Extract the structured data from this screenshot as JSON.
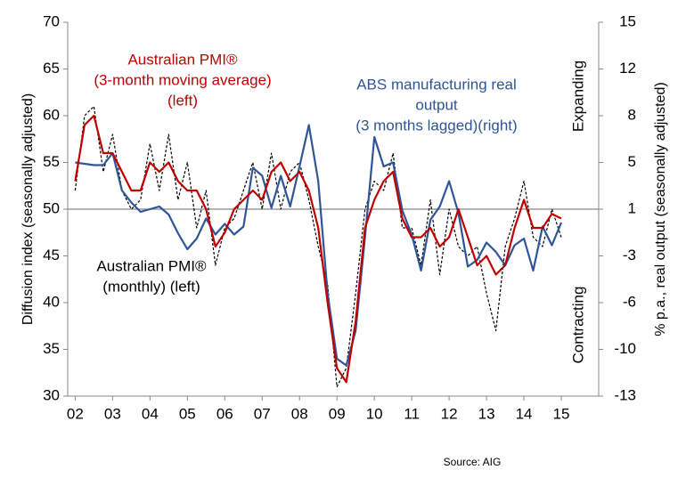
{
  "chart_data": {
    "type": "line",
    "axis_labels": {
      "y": "Diffusion index (seasonally adjusted)",
      "y2": "% p.a., real output (seasonally adjusted)"
    },
    "side_labels": {
      "top": "Expanding",
      "bottom": "Contracting"
    },
    "source": "Source: AIG",
    "xlim": [
      2001.8,
      2016
    ],
    "xticks": [
      {
        "value": 2002,
        "label": "02"
      },
      {
        "value": 2003,
        "label": "03"
      },
      {
        "value": 2004,
        "label": "04"
      },
      {
        "value": 2005,
        "label": "05"
      },
      {
        "value": 2006,
        "label": "06"
      },
      {
        "value": 2007,
        "label": "07"
      },
      {
        "value": 2008,
        "label": "08"
      },
      {
        "value": 2009,
        "label": "09"
      },
      {
        "value": 2010,
        "label": "10"
      },
      {
        "value": 2011,
        "label": "11"
      },
      {
        "value": 2012,
        "label": "12"
      },
      {
        "value": 2013,
        "label": "13"
      },
      {
        "value": 2014,
        "label": "14"
      },
      {
        "value": 2015,
        "label": "15"
      }
    ],
    "ylim": [
      30,
      70
    ],
    "yticks": [
      30,
      35,
      40,
      45,
      50,
      55,
      60,
      65,
      70
    ],
    "y2lim": [
      -13,
      15
    ],
    "y2ticks": [
      -13,
      {
        "value": -9.5,
        "label": "-10"
      },
      -6,
      {
        "value": -2.5,
        "label": "-3"
      },
      1,
      {
        "value": 4.5,
        "label": "5"
      },
      8,
      {
        "value": 11.5,
        "label": "12"
      },
      15
    ],
    "hline": 50,
    "x": [
      2002,
      2002.25,
      2002.5,
      2002.75,
      2003,
      2003.25,
      2003.5,
      2003.75,
      2004,
      2004.25,
      2004.5,
      2004.75,
      2005,
      2005.25,
      2005.5,
      2005.75,
      2006,
      2006.25,
      2006.5,
      2006.75,
      2007,
      2007.25,
      2007.5,
      2007.75,
      2008,
      2008.25,
      2008.5,
      2008.75,
      2009,
      2009.25,
      2009.5,
      2009.75,
      2010,
      2010.25,
      2010.5,
      2010.75,
      2011,
      2011.25,
      2011.5,
      2011.75,
      2012,
      2012.25,
      2012.5,
      2012.75,
      2013,
      2013.25,
      2013.5,
      2013.75,
      2014,
      2014.25,
      2014.5,
      2014.75,
      2015
    ],
    "series": [
      {
        "label": [
          "Australian PMI®",
          "(monthly) (left)"
        ],
        "color": "#000000",
        "dashed": true,
        "values": [
          52,
          60,
          61,
          54,
          58,
          52,
          50,
          51,
          57,
          52,
          58,
          51,
          55,
          48,
          52,
          44,
          48,
          49,
          52,
          55,
          50,
          56,
          50,
          54,
          55,
          51,
          46,
          42,
          31,
          33,
          41,
          50,
          53,
          52,
          56,
          48,
          48,
          44,
          51,
          43,
          50,
          46,
          45,
          46,
          41,
          37,
          46,
          49,
          53,
          47,
          46,
          50,
          47
        ]
      },
      {
        "label": [
          "ABS manufacturing real",
          "output",
          "(3 months lagged)(right)"
        ],
        "color": "#2f5597",
        "axis": "y2",
        "values": [
          4.5,
          4.4,
          4.3,
          4.3,
          5.2,
          2.4,
          1.5,
          0.8,
          1.0,
          1.2,
          0.6,
          -0.8,
          -2.0,
          -1.2,
          0.3,
          -0.9,
          -0.1,
          -0.9,
          -0.3,
          4.1,
          3.5,
          1.1,
          3.5,
          1.2,
          4.2,
          7.3,
          3.1,
          -5.3,
          -10.2,
          -10.7,
          -8.1,
          -1.1,
          6.4,
          4.2,
          4.5,
          0.9,
          -0.9,
          -3.6,
          0.2,
          1.2,
          3.1,
          0.7,
          -3.3,
          -2.8,
          -1.5,
          -2.2,
          -3.2,
          -1.7,
          -1.2,
          -3.6,
          -0.3,
          -1.7,
          0.0
        ]
      },
      {
        "label": [
          "Australian PMI®",
          "(3-month moving average)",
          "(left)"
        ],
        "color": "#c00000",
        "values": [
          53,
          59,
          60,
          56,
          56,
          54,
          52,
          52,
          55,
          54,
          55,
          53,
          52,
          52,
          50,
          46,
          47.5,
          50,
          51,
          52,
          51,
          54,
          55,
          53,
          54,
          52,
          48,
          40,
          33,
          31.5,
          38,
          48,
          51,
          53,
          54,
          49,
          47,
          47,
          48,
          46,
          47,
          50,
          47,
          44,
          45,
          43,
          44,
          48,
          51,
          48,
          48,
          49.5,
          49
        ]
      }
    ]
  }
}
